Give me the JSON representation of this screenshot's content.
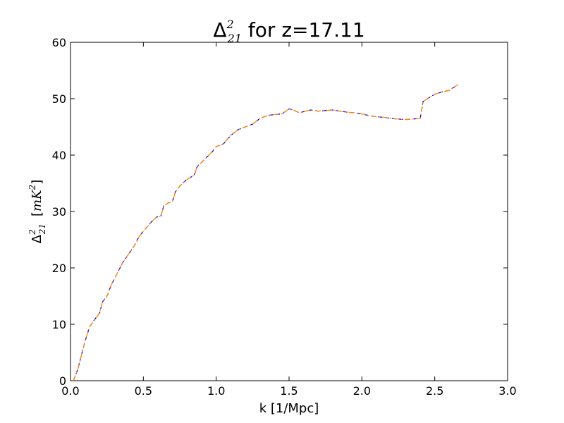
{
  "chart_data": {
    "type": "line",
    "title": {
      "symbol": "Δ",
      "sup": "2",
      "sub": "21",
      "text": " for z=17.11"
    },
    "xlabel": "k [1/Mpc]",
    "ylabel": {
      "symbol": "Δ",
      "sup": "2",
      "sub": "21",
      "unit_prefix": "[",
      "unit_m": "m",
      "unit_k": "K",
      "unit_sup": "2",
      "unit_suffix": "]"
    },
    "xlim": [
      0,
      3.0
    ],
    "ylim": [
      0,
      60
    ],
    "xticks": [
      "0.0",
      "0.5",
      "1.0",
      "1.5",
      "2.0",
      "2.5",
      "3.0"
    ],
    "yticks": [
      "0",
      "10",
      "20",
      "30",
      "40",
      "50",
      "60"
    ],
    "grid": false,
    "series": [
      {
        "color": "#0000ff",
        "dash": "dashed",
        "x": [
          0.02,
          0.05,
          0.08,
          0.1,
          0.13,
          0.17,
          0.2,
          0.22,
          0.25,
          0.28,
          0.32,
          0.36,
          0.4,
          0.44,
          0.47,
          0.5,
          0.55,
          0.59,
          0.62,
          0.64,
          0.67,
          0.7,
          0.72,
          0.75,
          0.79,
          0.82,
          0.85,
          0.87,
          0.9,
          0.93,
          0.97,
          1.0,
          1.05,
          1.1,
          1.15,
          1.2,
          1.25,
          1.3,
          1.35,
          1.4,
          1.45,
          1.5,
          1.53,
          1.57,
          1.6,
          1.65,
          1.7,
          1.75,
          1.8,
          1.85,
          1.9,
          1.95,
          2.0,
          2.05,
          2.1,
          2.15,
          2.2,
          2.25,
          2.3,
          2.35,
          2.4,
          2.42,
          2.45,
          2.5,
          2.55,
          2.6,
          2.63,
          2.66
        ],
        "y": [
          0,
          2,
          5,
          7,
          9.5,
          11,
          12,
          14,
          15,
          17,
          19,
          21,
          22.5,
          24,
          25.5,
          26.5,
          28,
          29,
          29.2,
          31,
          31.5,
          31.8,
          33.5,
          34.5,
          35.5,
          36,
          36.5,
          38,
          38.7,
          39.5,
          40.5,
          41.5,
          42,
          43.5,
          44.5,
          45,
          45.5,
          46.5,
          47,
          47.2,
          47.3,
          48.2,
          48,
          47.5,
          47.7,
          48,
          47.8,
          47.9,
          48,
          47.8,
          47.6,
          47.5,
          47.3,
          47,
          46.8,
          46.7,
          46.5,
          46.4,
          46.3,
          46.4,
          46.5,
          49.5,
          50,
          50.8,
          51.2,
          51.5,
          52,
          52.5
        ]
      },
      {
        "color": "#ff8c00",
        "dash": "dashdot",
        "x": [
          0.02,
          0.05,
          0.08,
          0.1,
          0.13,
          0.17,
          0.2,
          0.22,
          0.25,
          0.28,
          0.32,
          0.36,
          0.4,
          0.44,
          0.47,
          0.5,
          0.55,
          0.59,
          0.62,
          0.64,
          0.67,
          0.7,
          0.72,
          0.75,
          0.79,
          0.82,
          0.85,
          0.87,
          0.9,
          0.93,
          0.97,
          1.0,
          1.05,
          1.1,
          1.15,
          1.2,
          1.25,
          1.3,
          1.35,
          1.4,
          1.45,
          1.5,
          1.53,
          1.57,
          1.6,
          1.65,
          1.7,
          1.75,
          1.8,
          1.85,
          1.9,
          1.95,
          2.0,
          2.05,
          2.1,
          2.15,
          2.2,
          2.25,
          2.3,
          2.35,
          2.4,
          2.42,
          2.45,
          2.5,
          2.55,
          2.6,
          2.63,
          2.66
        ],
        "y": [
          0,
          2,
          5,
          7,
          9.5,
          11,
          12,
          14,
          15,
          17,
          19,
          21,
          22.5,
          24,
          25.5,
          26.5,
          28,
          29,
          29.2,
          31,
          31.5,
          31.8,
          33.5,
          34.5,
          35.5,
          36,
          36.5,
          38,
          38.7,
          39.5,
          40.5,
          41.5,
          42,
          43.5,
          44.5,
          45,
          45.5,
          46.5,
          47,
          47.2,
          47.3,
          48.2,
          48,
          47.5,
          47.7,
          48,
          47.8,
          47.9,
          48,
          47.8,
          47.6,
          47.5,
          47.3,
          47,
          46.8,
          46.7,
          46.5,
          46.4,
          46.3,
          46.4,
          46.5,
          49.5,
          50,
          50.8,
          51.2,
          51.5,
          52,
          52.5
        ]
      }
    ]
  }
}
